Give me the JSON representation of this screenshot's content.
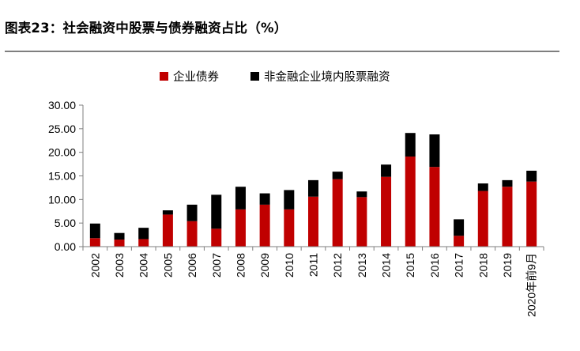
{
  "figure": {
    "title": "图表23：社会融资中股票与债券融资占比（%）"
  },
  "chart_data": {
    "type": "bar",
    "stacked": true,
    "categories": [
      "2002",
      "2003",
      "2004",
      "2005",
      "2006",
      "2007",
      "2008",
      "2009",
      "2010",
      "2011",
      "2012",
      "2013",
      "2014",
      "2015",
      "2016",
      "2017",
      "2018",
      "2019",
      "2020年前9月"
    ],
    "series": [
      {
        "name": "企业债券",
        "color": "#c00000",
        "values": [
          1.8,
          1.5,
          1.6,
          6.8,
          5.4,
          3.8,
          7.9,
          8.9,
          7.9,
          10.6,
          14.3,
          10.5,
          14.8,
          19.1,
          16.9,
          2.3,
          11.8,
          12.7,
          13.8
        ]
      },
      {
        "name": "非金融企业境内股票融资",
        "color": "#000000",
        "values": [
          3.1,
          1.4,
          2.4,
          0.9,
          3.5,
          7.2,
          4.8,
          2.4,
          4.1,
          3.5,
          1.6,
          1.2,
          2.6,
          5.0,
          6.9,
          3.5,
          1.6,
          1.4,
          2.3
        ]
      }
    ],
    "ylim": [
      0,
      30
    ],
    "yticks": [
      "0.00",
      "5.00",
      "10.00",
      "15.00",
      "20.00",
      "25.00",
      "30.00"
    ],
    "legend_position": "top-center",
    "grid": false
  }
}
